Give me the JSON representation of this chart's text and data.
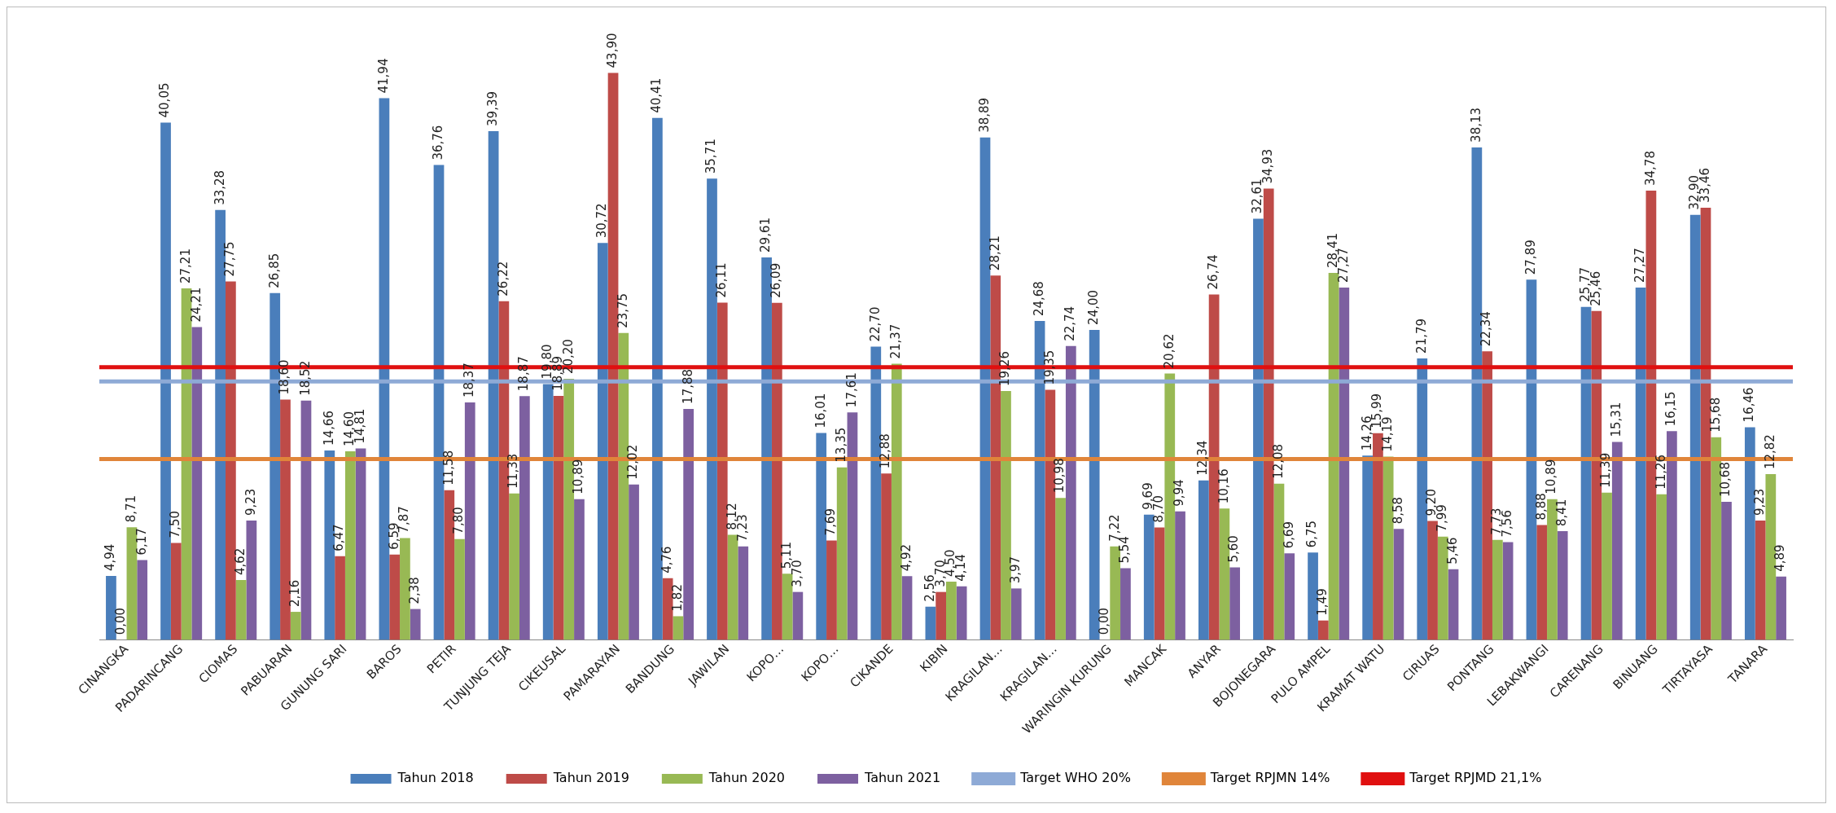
{
  "chart_data": {
    "type": "bar",
    "categories": [
      "CINANGKA",
      "PADARINCANG",
      "CIOMAS",
      "PABUARAN",
      "GUNUNG SARI",
      "BAROS",
      "PETIR",
      "TUNJUNG TEJA",
      "CIKEUSAL",
      "PAMARAYAN",
      "BANDUNG",
      "JAWILAN",
      "KOPO…",
      "KOPO…",
      "CIKANDE",
      "KIBIN",
      "KRAGILAN…",
      "KRAGILAN…",
      "WARINGIN KURUNG",
      "MANCAK",
      "ANYAR",
      "BOJONEGARA",
      "PULO AMPEL",
      "KRAMAT WATU",
      "CIRUAS",
      "PONTANG",
      "LEBAKWANGI",
      "CARENANG",
      "BINUANG",
      "TIRTAYASA",
      "TANARA"
    ],
    "series": [
      {
        "name": "Tahun 2018",
        "color": "#4a7ebb",
        "values": [
          4.94,
          40.05,
          33.28,
          26.85,
          14.66,
          41.94,
          36.76,
          39.39,
          19.8,
          30.72,
          40.41,
          35.71,
          29.61,
          16.01,
          22.7,
          2.56,
          38.89,
          24.68,
          24.0,
          9.69,
          12.34,
          32.61,
          6.75,
          14.26,
          21.79,
          38.13,
          27.89,
          25.77,
          27.27,
          32.9,
          16.46
        ],
        "value_labels": [
          "4,94",
          "40,05",
          "33,28",
          "26,85",
          "14,66",
          "41,94",
          "36,76",
          "39,39",
          "19,80",
          "30,72",
          "40,41",
          "35,71",
          "29,61",
          "16,01",
          "22,70",
          "2,56",
          "38,89",
          "24,68",
          "24,00",
          "9,69",
          "12,34",
          "32,61",
          "6,75",
          "14,26",
          "21,79",
          "38,13",
          "27,89",
          "25,77",
          "27,27",
          "32,90",
          "16,46"
        ]
      },
      {
        "name": "Tahun 2019",
        "color": "#be4b48",
        "values": [
          0.0,
          7.5,
          27.75,
          18.6,
          6.47,
          6.59,
          11.58,
          26.22,
          18.89,
          43.9,
          4.76,
          26.11,
          26.09,
          7.69,
          12.88,
          3.7,
          28.21,
          19.35,
          0.0,
          8.7,
          26.74,
          34.93,
          1.49,
          15.99,
          9.2,
          22.34,
          8.88,
          25.46,
          34.78,
          33.46,
          9.23
        ],
        "value_labels": [
          "0,00",
          "7,50",
          "27,75",
          "18,60",
          "6,47",
          "6,59",
          "11,58",
          "26,22",
          "18,89",
          "43,90",
          "4,76",
          "26,11",
          "26,09",
          "7,69",
          "12,88",
          "3,70",
          "28,21",
          "19,35",
          "0,00",
          "8,70",
          "26,74",
          "34,93",
          "1,49",
          "15,99",
          "9,20",
          "22,34",
          "8,88",
          "25,46",
          "34,78",
          "33,46",
          "9,23"
        ]
      },
      {
        "name": "Tahun 2020",
        "color": "#98b954",
        "values": [
          8.71,
          27.21,
          4.62,
          2.16,
          14.6,
          7.87,
          7.8,
          11.33,
          20.2,
          23.75,
          1.82,
          8.12,
          5.11,
          13.35,
          21.37,
          4.5,
          19.26,
          10.98,
          7.22,
          20.62,
          10.16,
          12.08,
          28.41,
          14.19,
          7.99,
          7.73,
          10.89,
          11.39,
          11.26,
          15.68,
          12.82
        ],
        "value_labels": [
          "8,71",
          "27,21",
          "4,62",
          "2,16",
          "14,60",
          "7,87",
          "7,80",
          "11,33",
          "20,20",
          "23,75",
          "1,82",
          "8,12",
          "5,11",
          "13,35",
          "21,37",
          "4,50",
          "19,26",
          "10,98",
          "7,22",
          "20,62",
          "10,16",
          "12,08",
          "28,41",
          "14,19",
          "7,99",
          "7,73",
          "10,89",
          "11,39",
          "11,26",
          "15,68",
          "12,82"
        ]
      },
      {
        "name": "Tahun 2021",
        "color": "#7d60a0",
        "values": [
          6.17,
          24.21,
          9.23,
          18.52,
          14.81,
          2.38,
          18.37,
          18.87,
          10.89,
          12.02,
          17.88,
          7.23,
          3.7,
          17.61,
          4.92,
          4.14,
          3.97,
          22.74,
          5.54,
          9.94,
          5.6,
          6.69,
          27.27,
          8.58,
          5.46,
          7.56,
          8.41,
          15.31,
          16.15,
          10.68,
          4.89
        ],
        "value_labels": [
          "6,17",
          "24,21",
          "9,23",
          "18,52",
          "14,81",
          "2,38",
          "18,37",
          "18,87",
          "10,89",
          "12,02",
          "17,88",
          "7,23",
          "3,70",
          "17,61",
          "4,92",
          "4,14",
          "3,97",
          "22,74",
          "5,54",
          "9,94",
          "5,60",
          "6,69",
          "27,27",
          "8,58",
          "5,46",
          "7,56",
          "8,41",
          "15,31",
          "16,15",
          "10,68",
          "4,89"
        ]
      }
    ],
    "ref_lines": [
      {
        "axis": "y",
        "value": 20,
        "label": "Target WHO 20%",
        "color": "#8eaad6"
      },
      {
        "axis": "y",
        "value": 14,
        "label": "Target RPJMN 14%",
        "color": "#e0853a"
      },
      {
        "axis": "y",
        "value": 21.1,
        "label": "Target RPJMD 21,1%",
        "color": "#e01010"
      }
    ],
    "tick_labels": "x",
    "grid": false,
    "legend": "bottom"
  }
}
